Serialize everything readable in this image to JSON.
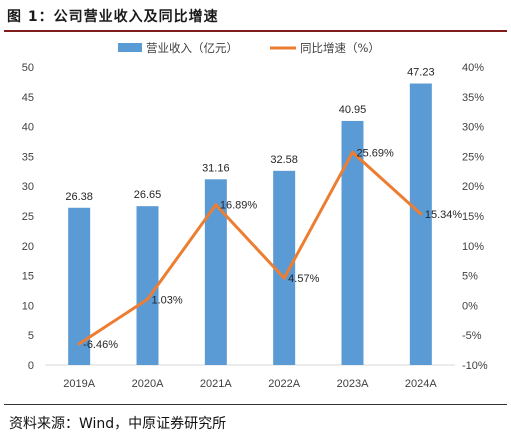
{
  "figure": {
    "title": "图 1：公司营业收入及同比增速",
    "source": "资料来源：Wind，中原证券研究所"
  },
  "colors": {
    "bar": "#5b9bd5",
    "line": "#ed7d31",
    "rule": "#7f1d1d"
  },
  "chart_data": {
    "type": "bar",
    "categories": [
      "2019A",
      "2020A",
      "2021A",
      "2022A",
      "2023A",
      "2024A"
    ],
    "series": [
      {
        "name": "营业收入（亿元）",
        "type": "bar",
        "axis": "left",
        "values": [
          26.38,
          26.65,
          31.16,
          32.58,
          40.95,
          47.23
        ],
        "labels": [
          "26.38",
          "26.65",
          "31.16",
          "32.58",
          "40.95",
          "47.23"
        ]
      },
      {
        "name": "同比增速（%）",
        "type": "line",
        "axis": "right",
        "values": [
          -6.46,
          1.03,
          16.89,
          4.57,
          25.69,
          15.34
        ],
        "labels": [
          "-6.46%",
          "1.03%",
          "16.89%",
          "4.57%",
          "25.69%",
          "15.34%"
        ]
      }
    ],
    "ylim": [
      0,
      50
    ],
    "y_ticks": [
      "0",
      "5",
      "10",
      "15",
      "20",
      "25",
      "30",
      "35",
      "40",
      "45",
      "50"
    ],
    "y2lim": [
      -10,
      40
    ],
    "y2_ticks": [
      "-10%",
      "-5%",
      "0%",
      "5%",
      "10%",
      "15%",
      "20%",
      "25%",
      "30%",
      "35%",
      "40%"
    ],
    "grid": false,
    "legend": "top"
  }
}
